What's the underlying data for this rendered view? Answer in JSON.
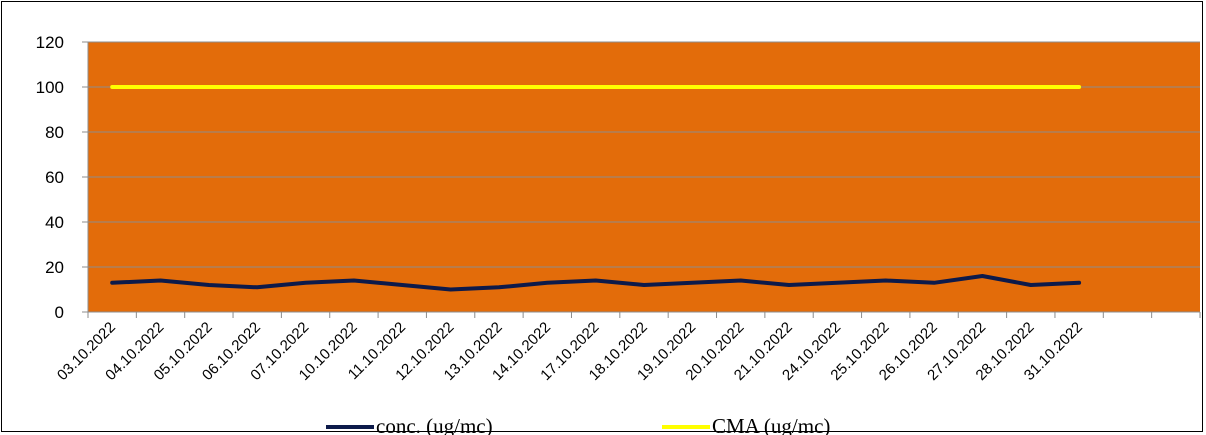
{
  "chart_data": {
    "type": "line",
    "categories": [
      "03.10.2022",
      "04.10.2022",
      "05.10.2022",
      "06.10.2022",
      "07.10.2022",
      "10.10.2022",
      "11.10.2022",
      "12.10.2022",
      "13.10.2022",
      "14.10.2022",
      "17.10.2022",
      "18.10.2022",
      "19.10.2022",
      "20.10.2022",
      "21.10.2022",
      "24.10.2022",
      "25.10.2022",
      "26.10.2022",
      "27.10.2022",
      "28.10.2022",
      "31.10.2022",
      "",
      ""
    ],
    "series": [
      {
        "name": "conc. (ug/mc)",
        "color": "#0d1a4a",
        "values": [
          13,
          14,
          12,
          11,
          13,
          14,
          12,
          10,
          11,
          13,
          14,
          12,
          13,
          14,
          12,
          13,
          14,
          13,
          16,
          12,
          13,
          null,
          null
        ]
      },
      {
        "name": "CMA (ug/mc)",
        "color": "#ffff00",
        "values": [
          100,
          100,
          100,
          100,
          100,
          100,
          100,
          100,
          100,
          100,
          100,
          100,
          100,
          100,
          100,
          100,
          100,
          100,
          100,
          100,
          100,
          null,
          null
        ]
      }
    ],
    "ylim": [
      0,
      120
    ],
    "yticks": [
      0,
      20,
      40,
      60,
      80,
      100,
      120
    ],
    "grid": true,
    "plot_background": "#e36c0a",
    "legend_position": "bottom"
  }
}
